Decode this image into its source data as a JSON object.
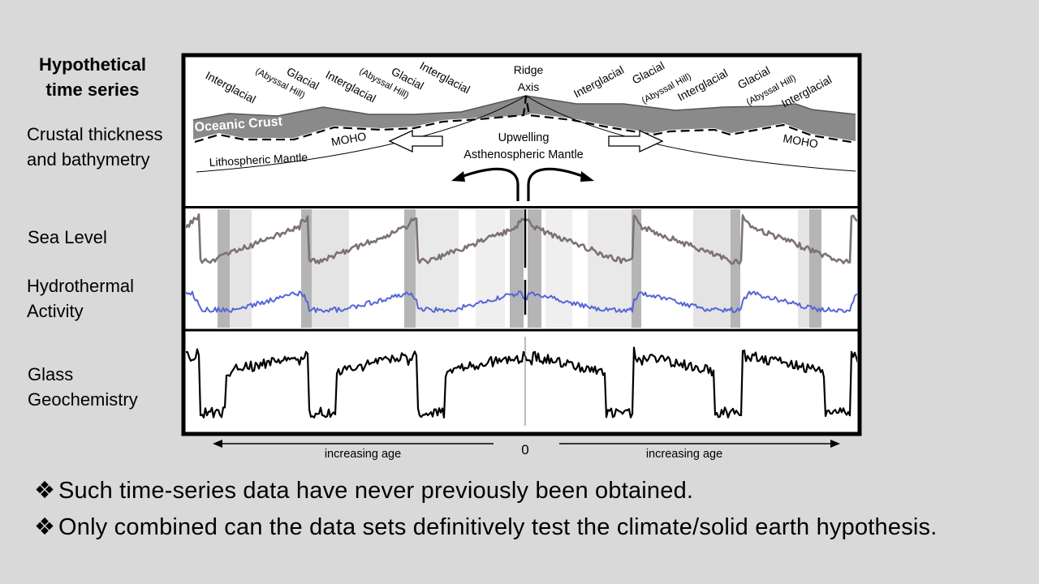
{
  "title": "Hypothetical time series",
  "row_labels": {
    "crustal": [
      "Crustal thickness",
      "and bathymetry"
    ],
    "sea_level": "Sea Level",
    "hydro": [
      "Hydrothermal",
      "Activity"
    ],
    "glass": [
      "Glass",
      "Geochemistry"
    ]
  },
  "diagram": {
    "ridge_axis": [
      "Ridge",
      "Axis"
    ],
    "left_labels": [
      "Interglacial",
      "(Abyssal Hill)",
      "Glacial",
      "Interglacial",
      "(Abyssal Hill)",
      "Glacial",
      "Interglacial"
    ],
    "right_labels": [
      "Interglacial",
      "Glacial",
      "(Abyssal Hill)",
      "Interglacial",
      "Glacial",
      "(Abyssal Hill)",
      "Interglacial"
    ],
    "oceanic_crust": "Oceanic Crust",
    "moho": "MOHO",
    "lithospheric_mantle": "Lithospheric Mantle",
    "upwelling": [
      "Upwelling",
      "Asthenospheric Mantle"
    ]
  },
  "axis": {
    "left": "increasing age",
    "zero": "0",
    "right": "increasing age"
  },
  "bullet_mark": "❖",
  "bullets": [
    "Such time-series data have never previously been obtained.",
    "Only combined can the data sets definitively test the climate/solid earth hypothesis."
  ],
  "colors": {
    "sea_level": "#7d7270",
    "hydro": "#5566d6",
    "glass": "#000000",
    "crust": "#8a8a8a",
    "bands": "#b9b9b9",
    "bg": "#d9d9d9"
  }
}
